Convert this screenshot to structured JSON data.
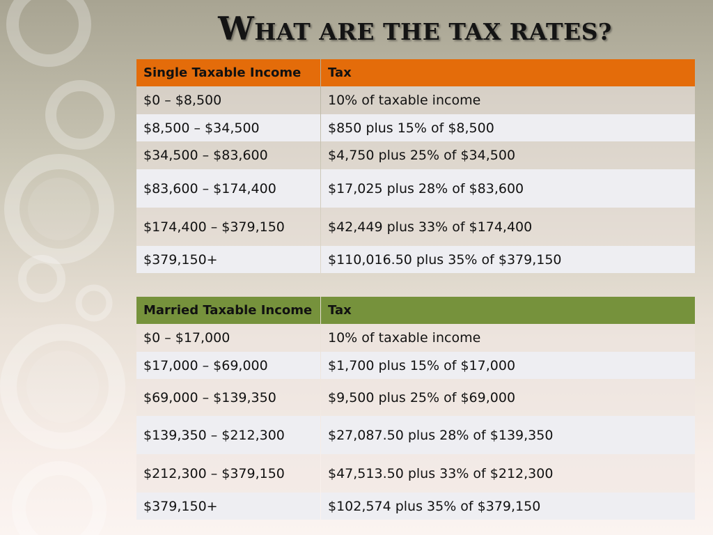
{
  "title": {
    "first": "W",
    "rest": "HAT ARE THE TAX RATES?"
  },
  "single_table": {
    "headers": [
      "Single Taxable Income",
      "Tax"
    ],
    "rows": [
      [
        "$0 – $8,500",
        "10% of taxable income"
      ],
      [
        "$8,500 – $34,500",
        "$850 plus 15% of $8,500"
      ],
      [
        "$34,500 – $83,600",
        "$4,750 plus 25% of $34,500"
      ],
      [
        "$83,600 – $174,400",
        "$17,025 plus 28% of $83,600"
      ],
      [
        "$174,400 – $379,150",
        "$42,449 plus 33% of $174,400"
      ],
      [
        "$379,150+",
        "$110,016.50 plus 35% of $379,150"
      ]
    ]
  },
  "married_table": {
    "headers": [
      "Married Taxable Income",
      "Tax"
    ],
    "rows": [
      [
        "$0 – $17,000",
        "10% of taxable income"
      ],
      [
        "$17,000 – $69,000",
        "$1,700 plus 15% of $17,000"
      ],
      [
        "$69,000 – $139,350",
        "$9,500 plus 25% of $69,000"
      ],
      [
        "$139,350 – $212,300",
        "$27,087.50 plus 28% of $139,350"
      ],
      [
        "$212,300 – $379,150",
        "$47,513.50 plus 33% of $212,300"
      ],
      [
        "$379,150+",
        "$102,574 plus 35% of $379,150"
      ]
    ]
  },
  "colors": {
    "single_header": "#e46c0a",
    "married_header": "#76923c"
  }
}
